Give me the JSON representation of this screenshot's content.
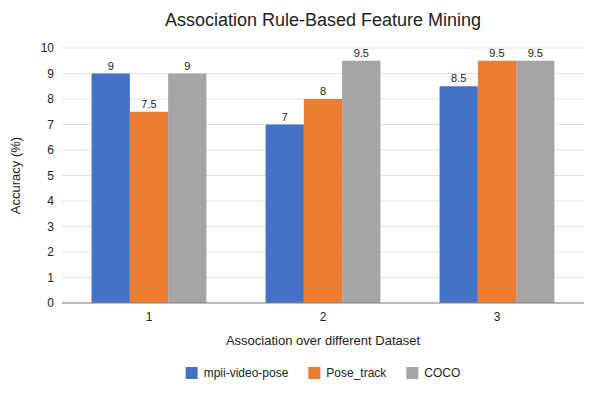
{
  "chart_data": {
    "type": "bar",
    "title": "Association Rule-Based Feature Mining",
    "xlabel": "Association over different Dataset",
    "ylabel": "Accuracy (%)",
    "categories": [
      "1",
      "2",
      "3"
    ],
    "series": [
      {
        "name": "mpii-video-pose",
        "color": "#4472C4",
        "values": [
          9,
          7,
          8.5
        ]
      },
      {
        "name": "Pose_track",
        "color": "#ED7D31",
        "values": [
          7.5,
          8,
          9.5
        ]
      },
      {
        "name": "COCO",
        "color": "#A5A5A5",
        "values": [
          9,
          9.5,
          9.5
        ]
      }
    ],
    "ylim": [
      0,
      10
    ],
    "yticks": [
      0,
      1,
      2,
      3,
      4,
      5,
      6,
      7,
      8,
      9,
      10
    ],
    "grid": true,
    "legend": "bottom",
    "data_labels": true
  }
}
